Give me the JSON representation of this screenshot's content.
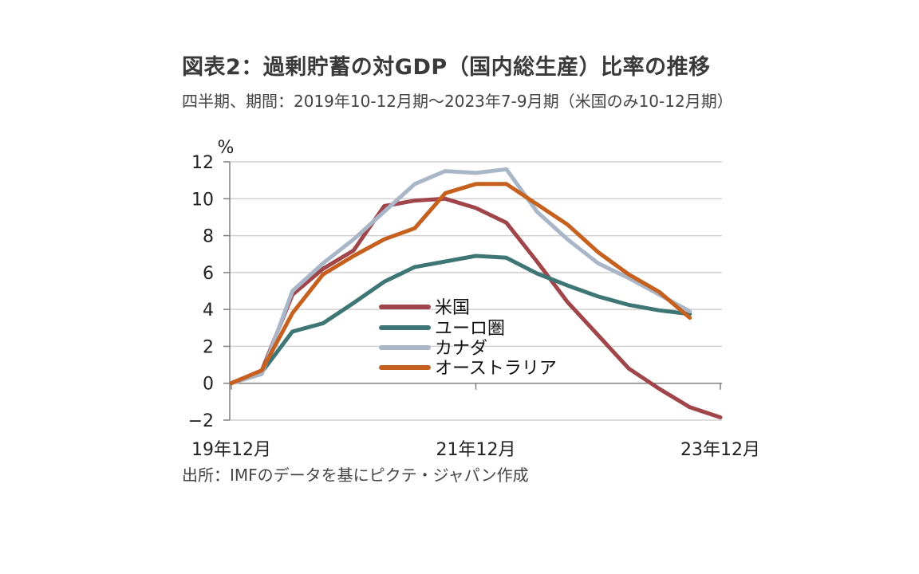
{
  "title": "図表2：過剰貯蓄の対GDP（国内総生産）比率の推移",
  "subtitle": "四半期、期間：2019年10-12月期～2023年7-9月期（米国のみ10-12月期）",
  "source": "出所：IMFのデータを基にピクテ・ジャパン作成",
  "colors": {
    "us": "#a0454a",
    "euro": "#3d7674",
    "canada": "#a8b6c8",
    "australia": "#c6601f",
    "grid": "#d0d0d0",
    "axis": "#808080"
  },
  "chart_data": {
    "type": "line",
    "unit_label": "%",
    "ylim": [
      -2,
      12
    ],
    "yticks": [
      12,
      10,
      8,
      6,
      4,
      2,
      0,
      -2
    ],
    "x_tick_labels": [
      "19年12月",
      "21年12月",
      "23年12月"
    ],
    "x_tick_positions": [
      0,
      8,
      16
    ],
    "x_count": 17,
    "grid": true,
    "legend_position": "center",
    "series": [
      {
        "name": "米国",
        "color_key": "us",
        "values": [
          0.0,
          0.7,
          4.8,
          6.2,
          7.2,
          9.6,
          9.9,
          10.0,
          9.5,
          8.7,
          6.6,
          4.4,
          2.6,
          0.8,
          -0.3,
          -1.3,
          -1.85
        ]
      },
      {
        "name": "ユーロ圏",
        "color_key": "euro",
        "values": [
          0.0,
          0.6,
          2.8,
          3.25,
          4.35,
          5.5,
          6.3,
          6.6,
          6.9,
          6.8,
          5.95,
          5.3,
          4.7,
          4.25,
          3.95,
          3.75
        ]
      },
      {
        "name": "カナダ",
        "color_key": "canada",
        "values": [
          0.0,
          0.5,
          5.0,
          6.5,
          7.8,
          9.3,
          10.8,
          11.5,
          11.4,
          11.6,
          9.3,
          7.8,
          6.5,
          5.7,
          4.8,
          3.9
        ]
      },
      {
        "name": "オーストラリア",
        "color_key": "australia",
        "values": [
          0.0,
          0.7,
          3.8,
          5.9,
          6.9,
          7.8,
          8.4,
          10.3,
          10.8,
          10.8,
          9.7,
          8.6,
          7.1,
          5.9,
          4.95,
          3.55
        ]
      }
    ]
  }
}
